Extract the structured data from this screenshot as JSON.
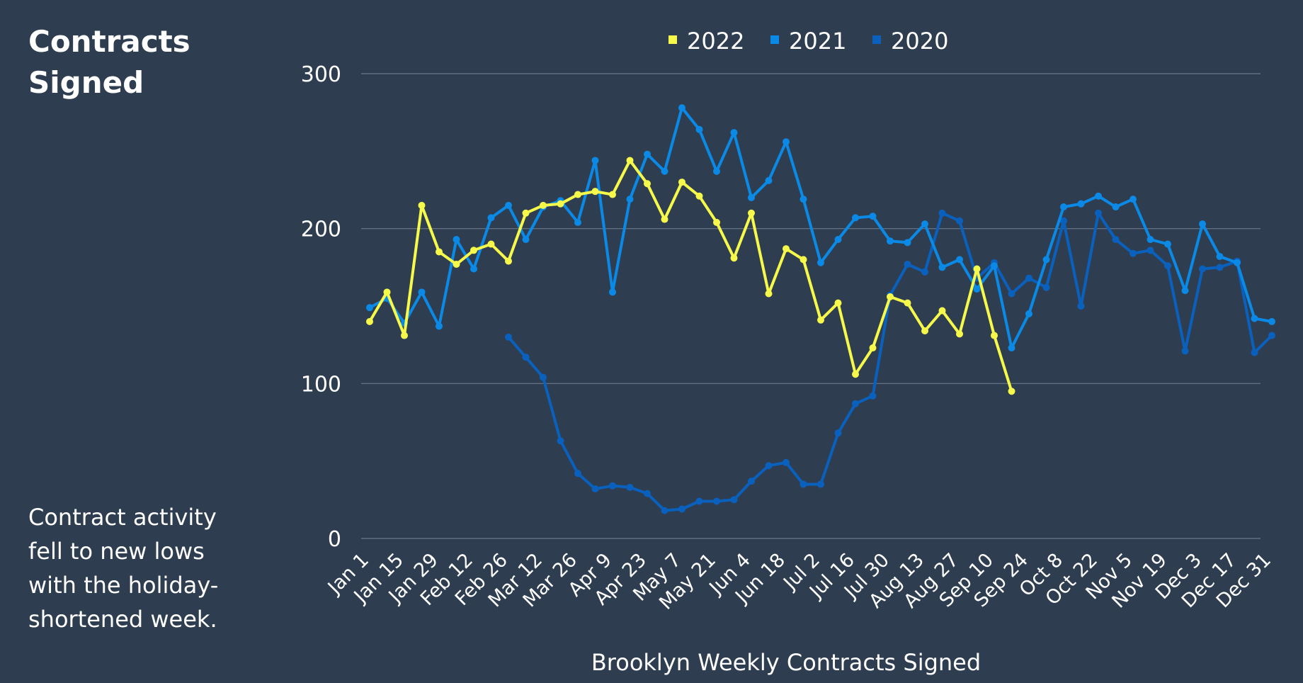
{
  "title": "Contracts Signed",
  "note": "Contract activity fell to new lows with the holiday-shortened week.",
  "colors": {
    "background": "#2e3e50",
    "grid": "#6a7888"
  },
  "chart_data": {
    "type": "line",
    "xlabel": "Brooklyn Weekly Contracts Signed",
    "ylabel": "",
    "ylim": [
      0,
      300
    ],
    "yticks": [
      0,
      100,
      200,
      300
    ],
    "grid": true,
    "legend": "top-center",
    "x_tick_labels": [
      "Jan 1",
      "Jan 15",
      "Jan 29",
      "Feb 12",
      "Feb 26",
      "Mar 12",
      "Mar 26",
      "Apr 9",
      "Apr 23",
      "May 7",
      "May 21",
      "Jun 4",
      "Jun 18",
      "Jul 2",
      "Jul 16",
      "Jul 30",
      "Aug 13",
      "Aug 27",
      "Sep 10",
      "Sep 24",
      "Oct 8",
      "Oct 22",
      "Nov 5",
      "Nov 19",
      "Dec 3",
      "Dec 17",
      "Dec 31"
    ],
    "series": [
      {
        "name": "2020",
        "color": "#0a60bd",
        "start_week": 8,
        "values": [
          130,
          117,
          104,
          63,
          42,
          32,
          34,
          33,
          29,
          18,
          19,
          24,
          24,
          25,
          37,
          47,
          49,
          35,
          35,
          68,
          87,
          92,
          157,
          177,
          172,
          210,
          205,
          168,
          178,
          158,
          168,
          162,
          205,
          150,
          210,
          193,
          184,
          186,
          176,
          121,
          174,
          175,
          179,
          120,
          131
        ]
      },
      {
        "name": "2021",
        "color": "#0a8ae6",
        "start_week": 0,
        "values": [
          149,
          155,
          139,
          159,
          137,
          193,
          174,
          207,
          215,
          193,
          214,
          218,
          204,
          244,
          159,
          219,
          248,
          237,
          278,
          264,
          237,
          262,
          220,
          231,
          256,
          219,
          178,
          193,
          207,
          208,
          192,
          191,
          203,
          175,
          180,
          161,
          176,
          123,
          145,
          180,
          214,
          216,
          221,
          214,
          219,
          193,
          190,
          160,
          203,
          182,
          178,
          142,
          140
        ]
      },
      {
        "name": "2022",
        "color": "#f7f94a",
        "start_week": 0,
        "values": [
          140,
          159,
          131,
          215,
          185,
          177,
          186,
          190,
          179,
          210,
          215,
          216,
          222,
          224,
          222,
          244,
          229,
          206,
          230,
          221,
          204,
          181,
          210,
          158,
          187,
          180,
          141,
          152,
          106,
          123,
          156,
          152,
          134,
          147,
          132,
          174,
          131,
          95
        ]
      }
    ]
  }
}
